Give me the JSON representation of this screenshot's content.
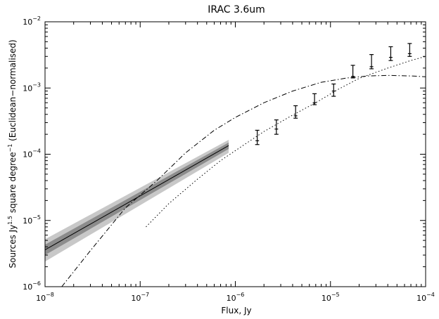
{
  "chart_data": {
    "type": "line",
    "title": "IRAC 3.6um",
    "xlabel": "Flux, Jy",
    "ylabel_parts": [
      {
        "t": "Sources Jy",
        "sup": false
      },
      {
        "t": "1.5",
        "sup": true
      },
      {
        "t": " square degree",
        "sup": false
      },
      {
        "t": "−1",
        "sup": true
      },
      {
        "t": " (Euclidean−normalised)",
        "sup": false
      }
    ],
    "x_scale": "log",
    "y_scale": "log",
    "xlim": [
      1e-08,
      0.0001
    ],
    "ylim": [
      1e-06,
      0.01
    ],
    "x_ticks": [
      {
        "value": 1e-08,
        "base": "10",
        "exp": "−8"
      },
      {
        "value": 1e-07,
        "base": "10",
        "exp": "−7"
      },
      {
        "value": 1e-06,
        "base": "10",
        "exp": "−6"
      },
      {
        "value": 1e-05,
        "base": "10",
        "exp": "−5"
      },
      {
        "value": 0.0001,
        "base": "10",
        "exp": "−4"
      }
    ],
    "y_ticks": [
      {
        "value": 1e-06,
        "base": "10",
        "exp": "−6"
      },
      {
        "value": 1e-05,
        "base": "10",
        "exp": "−5"
      },
      {
        "value": 0.0001,
        "base": "10",
        "exp": "−4"
      },
      {
        "value": 0.001,
        "base": "10",
        "exp": "−3"
      },
      {
        "value": 0.01,
        "base": "10",
        "exp": "−2"
      }
    ],
    "series": [
      {
        "style": "solid",
        "color": "#000000",
        "x": [
          1e-08,
          8.5e-07
        ],
        "y": [
          3.6e-06,
          0.000135
        ]
      },
      {
        "style": "dashdot",
        "color": "#000000",
        "x": [
          1.5e-08,
          3e-08,
          7e-08,
          1.5e-07,
          3e-07,
          6e-07,
          1e-06,
          2e-06,
          4e-06,
          8e-06,
          1.5e-05,
          2.5e-05,
          4e-05,
          7e-05,
          0.0001
        ],
        "y": [
          1e-06,
          3.5e-06,
          1.55e-05,
          4e-05,
          0.000105,
          0.00023,
          0.00036,
          0.0006,
          0.0009,
          0.00122,
          0.00142,
          0.00152,
          0.00155,
          0.00152,
          0.00148
        ]
      },
      {
        "style": "dotted",
        "color": "#000000",
        "x": [
          1.15e-07,
          2e-07,
          4e-07,
          7e-07,
          1.2e-06,
          2e-06,
          4e-06,
          7e-06,
          1.2e-05,
          2e-05,
          4e-05,
          7e-05,
          0.0001
        ],
        "y": [
          8e-06,
          1.8e-05,
          4.2e-05,
          8e-05,
          0.000135,
          0.00022,
          0.00039,
          0.0006,
          0.00095,
          0.0014,
          0.002,
          0.0026,
          0.003
        ]
      }
    ],
    "bands": [
      {
        "color": "#c8c8c8",
        "x": [
          1e-08,
          8.5e-07
        ],
        "lower": [
          2.4e-06,
          0.000105
        ],
        "upper": [
          5.2e-06,
          0.000165
        ]
      },
      {
        "color": "#8c8c8c",
        "x": [
          1e-08,
          8.5e-07
        ],
        "lower": [
          3e-06,
          0.00012
        ],
        "upper": [
          4.3e-06,
          0.00015
        ]
      }
    ],
    "error_points": [
      {
        "x": 1.7e-06,
        "y": 0.00016,
        "ylo": 0.00014,
        "yhi": 0.00023
      },
      {
        "x": 2.7e-06,
        "y": 0.00024,
        "ylo": 0.0002,
        "yhi": 0.00033
      },
      {
        "x": 4.3e-06,
        "y": 0.00038,
        "ylo": 0.00035,
        "yhi": 0.00054
      },
      {
        "x": 6.8e-06,
        "y": 0.0006,
        "ylo": 0.00056,
        "yhi": 0.00082
      },
      {
        "x": 1.08e-05,
        "y": 0.0009,
        "ylo": 0.00075,
        "yhi": 0.00115
      },
      {
        "x": 1.72e-05,
        "y": 0.0015,
        "ylo": 0.00142,
        "yhi": 0.0022
      },
      {
        "x": 2.7e-05,
        "y": 0.0021,
        "ylo": 0.00195,
        "yhi": 0.0032
      },
      {
        "x": 4.3e-05,
        "y": 0.0029,
        "ylo": 0.0026,
        "yhi": 0.0042
      },
      {
        "x": 6.8e-05,
        "y": 0.0033,
        "ylo": 0.003,
        "yhi": 0.0047
      }
    ],
    "grid": false,
    "legend": "none"
  }
}
